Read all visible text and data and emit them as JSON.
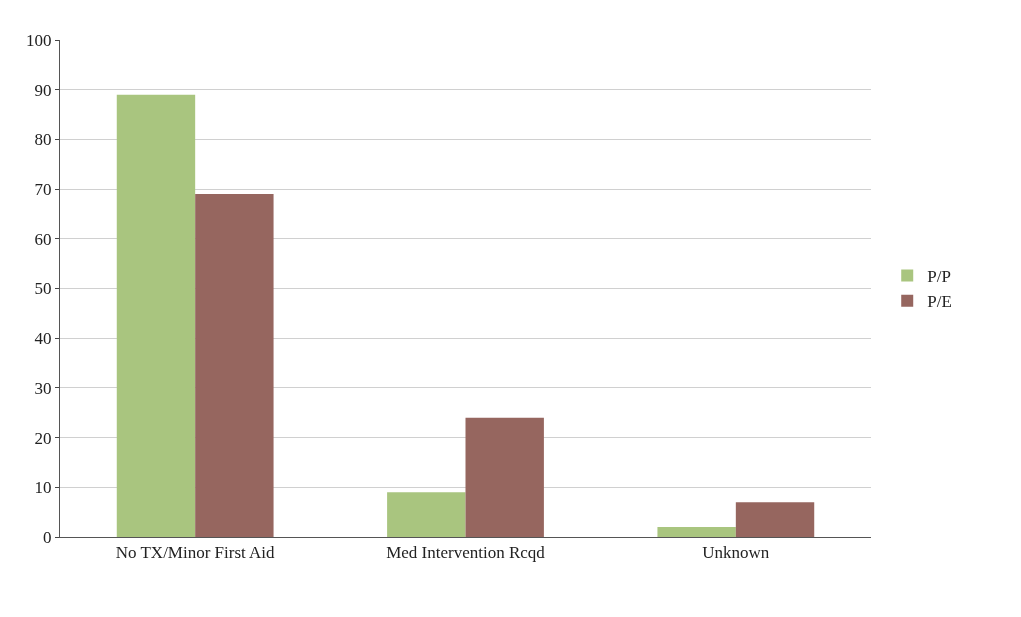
{
  "chart_data": {
    "type": "bar",
    "categories": [
      "No TX/Minor First Aid",
      "Med Intervention Rcqd",
      "Unknown"
    ],
    "series": [
      {
        "name": "P/P",
        "color": "#a9c57f",
        "values": [
          89,
          9,
          2
        ]
      },
      {
        "name": "P/E",
        "color": "#96665f",
        "values": [
          69,
          24,
          7
        ]
      }
    ],
    "ylim": [
      0,
      100
    ],
    "yticks": [
      0,
      10,
      20,
      30,
      40,
      50,
      60,
      70,
      80,
      90,
      100
    ],
    "grid": "y",
    "legend": "right"
  }
}
